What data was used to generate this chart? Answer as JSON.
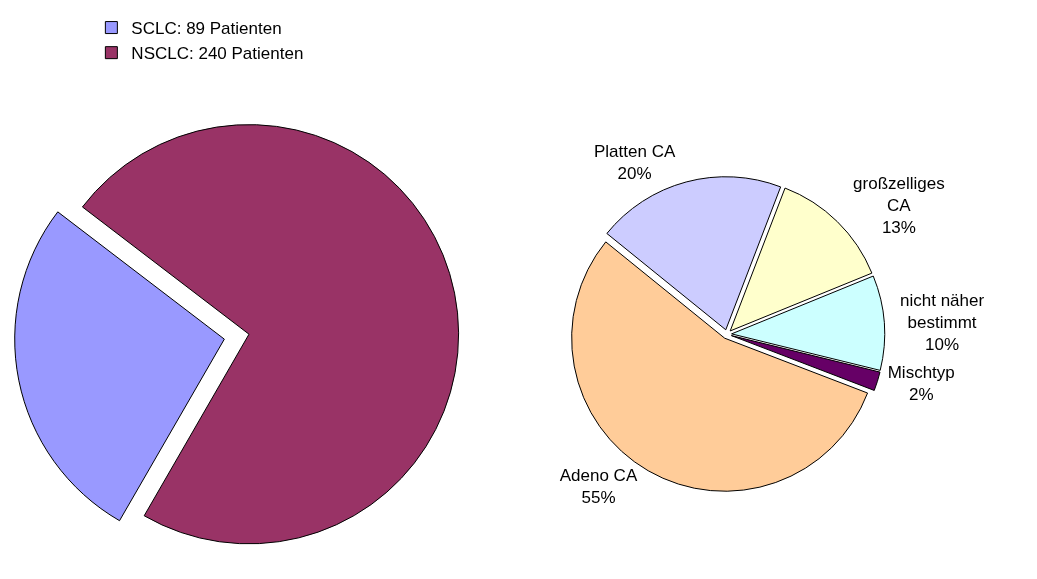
{
  "chart_data": [
    {
      "type": "pie",
      "categories": [
        "SCLC: 89 Patienten",
        "NSCLC: 240 Patienten"
      ],
      "values": [
        89,
        240
      ],
      "colors": [
        "#9999ff",
        "#993366"
      ],
      "legend": "top left"
    },
    {
      "type": "pie",
      "categories": [
        "Platten CA",
        "großzelliges CA",
        "nicht näher bestimmt",
        "Mischtyp",
        "Adeno CA"
      ],
      "values": [
        20,
        13,
        10,
        2,
        55
      ],
      "colors": [
        "#ccccff",
        "#ffffcc",
        "#ccffff",
        "#660066",
        "#ffcc99"
      ],
      "value_labels": [
        "20%",
        "13%",
        "10%",
        "2%",
        "55%"
      ]
    }
  ]
}
